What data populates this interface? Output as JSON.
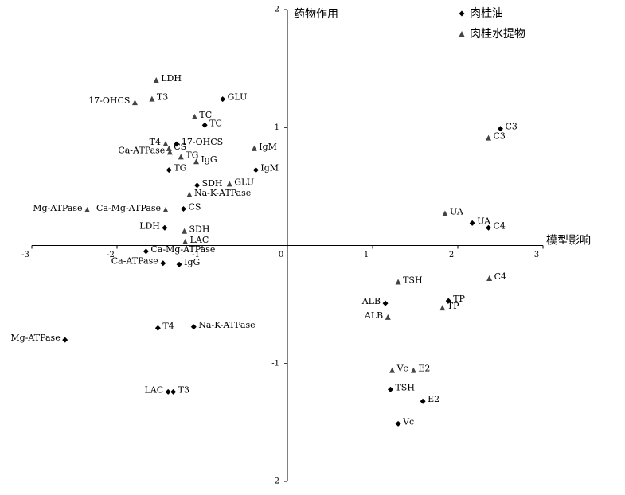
{
  "chart_data": {
    "type": "scatter",
    "x_label": "模型影响",
    "y_label": "药物作用",
    "xlim": [
      -3,
      3
    ],
    "ylim": [
      -2,
      2
    ],
    "xticks": [
      -3,
      -2,
      -1,
      0,
      1,
      2,
      3
    ],
    "yticks": [
      -2,
      -1,
      1,
      2
    ],
    "legend": "upper right",
    "series": [
      {
        "name": "肉桂油",
        "marker": "diamond",
        "color": "#000000",
        "labels": [
          "C3",
          "UA",
          "C4",
          "TP",
          "ALB",
          "E2",
          "TSH",
          "Vc",
          "GLU",
          "TC",
          "17-OHCS",
          "IgM",
          "SDH",
          "TG",
          "CS",
          "LDH",
          "Ca-Mg-ATPase",
          "Ca-ATPase",
          "IgG",
          "T4",
          "Na-K-ATPase",
          "Mg-ATPase",
          "LAC",
          "T3"
        ],
        "x": [
          2.5,
          2.17,
          2.36,
          1.89,
          1.15,
          1.59,
          1.21,
          1.3,
          -0.76,
          -0.97,
          -1.3,
          -0.37,
          -1.06,
          -1.39,
          -1.22,
          -1.44,
          -1.66,
          -1.46,
          -1.27,
          -1.52,
          -1.1,
          -2.61,
          -1.4,
          -1.34
        ],
        "values": [
          0.99,
          0.19,
          0.15,
          -0.47,
          -0.49,
          -1.32,
          -1.22,
          -1.51,
          1.24,
          1.02,
          0.86,
          0.64,
          0.51,
          0.64,
          0.31,
          0.15,
          -0.05,
          -0.15,
          -0.16,
          -0.7,
          -0.69,
          -0.8,
          -1.24,
          -1.24
        ]
      },
      {
        "name": "肉桂水提物",
        "marker": "triangle",
        "color": "#444444",
        "labels": [
          "C3",
          "UA",
          "C4",
          "TSH",
          "TP",
          "ALB",
          "Vc",
          "E2",
          "LDH",
          "T3",
          "17-OHCS",
          "TC",
          "T4",
          "CS",
          "Ca-ATPase",
          "TG",
          "IgG",
          "IgM",
          "GLU",
          "Na-K-ATPase",
          "Ca-Mg-ATPase",
          "Mg-ATPase",
          "SDH",
          "LAC"
        ],
        "x": [
          2.36,
          1.85,
          2.37,
          1.3,
          1.82,
          1.18,
          1.23,
          1.48,
          -1.54,
          -1.59,
          -1.79,
          -1.09,
          -1.43,
          -1.39,
          -1.38,
          -1.25,
          -1.07,
          -0.39,
          -0.68,
          -1.15,
          -1.43,
          -2.35,
          -1.21,
          -1.2
        ],
        "values": [
          0.91,
          0.27,
          -0.28,
          -0.31,
          -0.53,
          -0.61,
          -1.06,
          -1.06,
          1.4,
          1.24,
          1.21,
          1.09,
          0.86,
          0.82,
          0.79,
          0.75,
          0.71,
          0.82,
          0.52,
          0.43,
          0.3,
          0.3,
          0.12,
          0.03
        ]
      }
    ]
  }
}
